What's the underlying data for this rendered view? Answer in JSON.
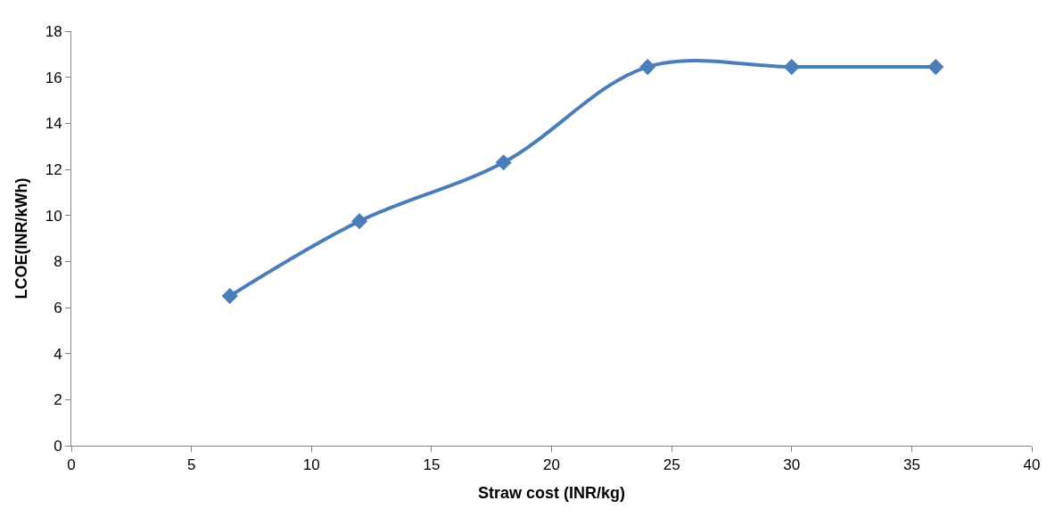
{
  "chart_data": {
    "type": "line",
    "xlabel": "Straw cost (INR/kg)",
    "ylabel": "LCOE(INR/kWh)",
    "x": [
      6.6,
      12,
      18,
      24,
      30,
      36
    ],
    "series": [
      {
        "color": "#4a7ebb",
        "values": [
          6.5,
          9.75,
          12.3,
          16.45,
          16.45,
          16.45
        ]
      }
    ],
    "xlim": [
      0,
      40
    ],
    "xticks": [
      0,
      5,
      10,
      15,
      20,
      25,
      30,
      35,
      40
    ],
    "ylim": [
      0,
      18
    ],
    "yticks": [
      0,
      2,
      4,
      6,
      8,
      10,
      12,
      14,
      16,
      18
    ],
    "legend": false,
    "marker": "diamond",
    "line_style": "solid"
  }
}
